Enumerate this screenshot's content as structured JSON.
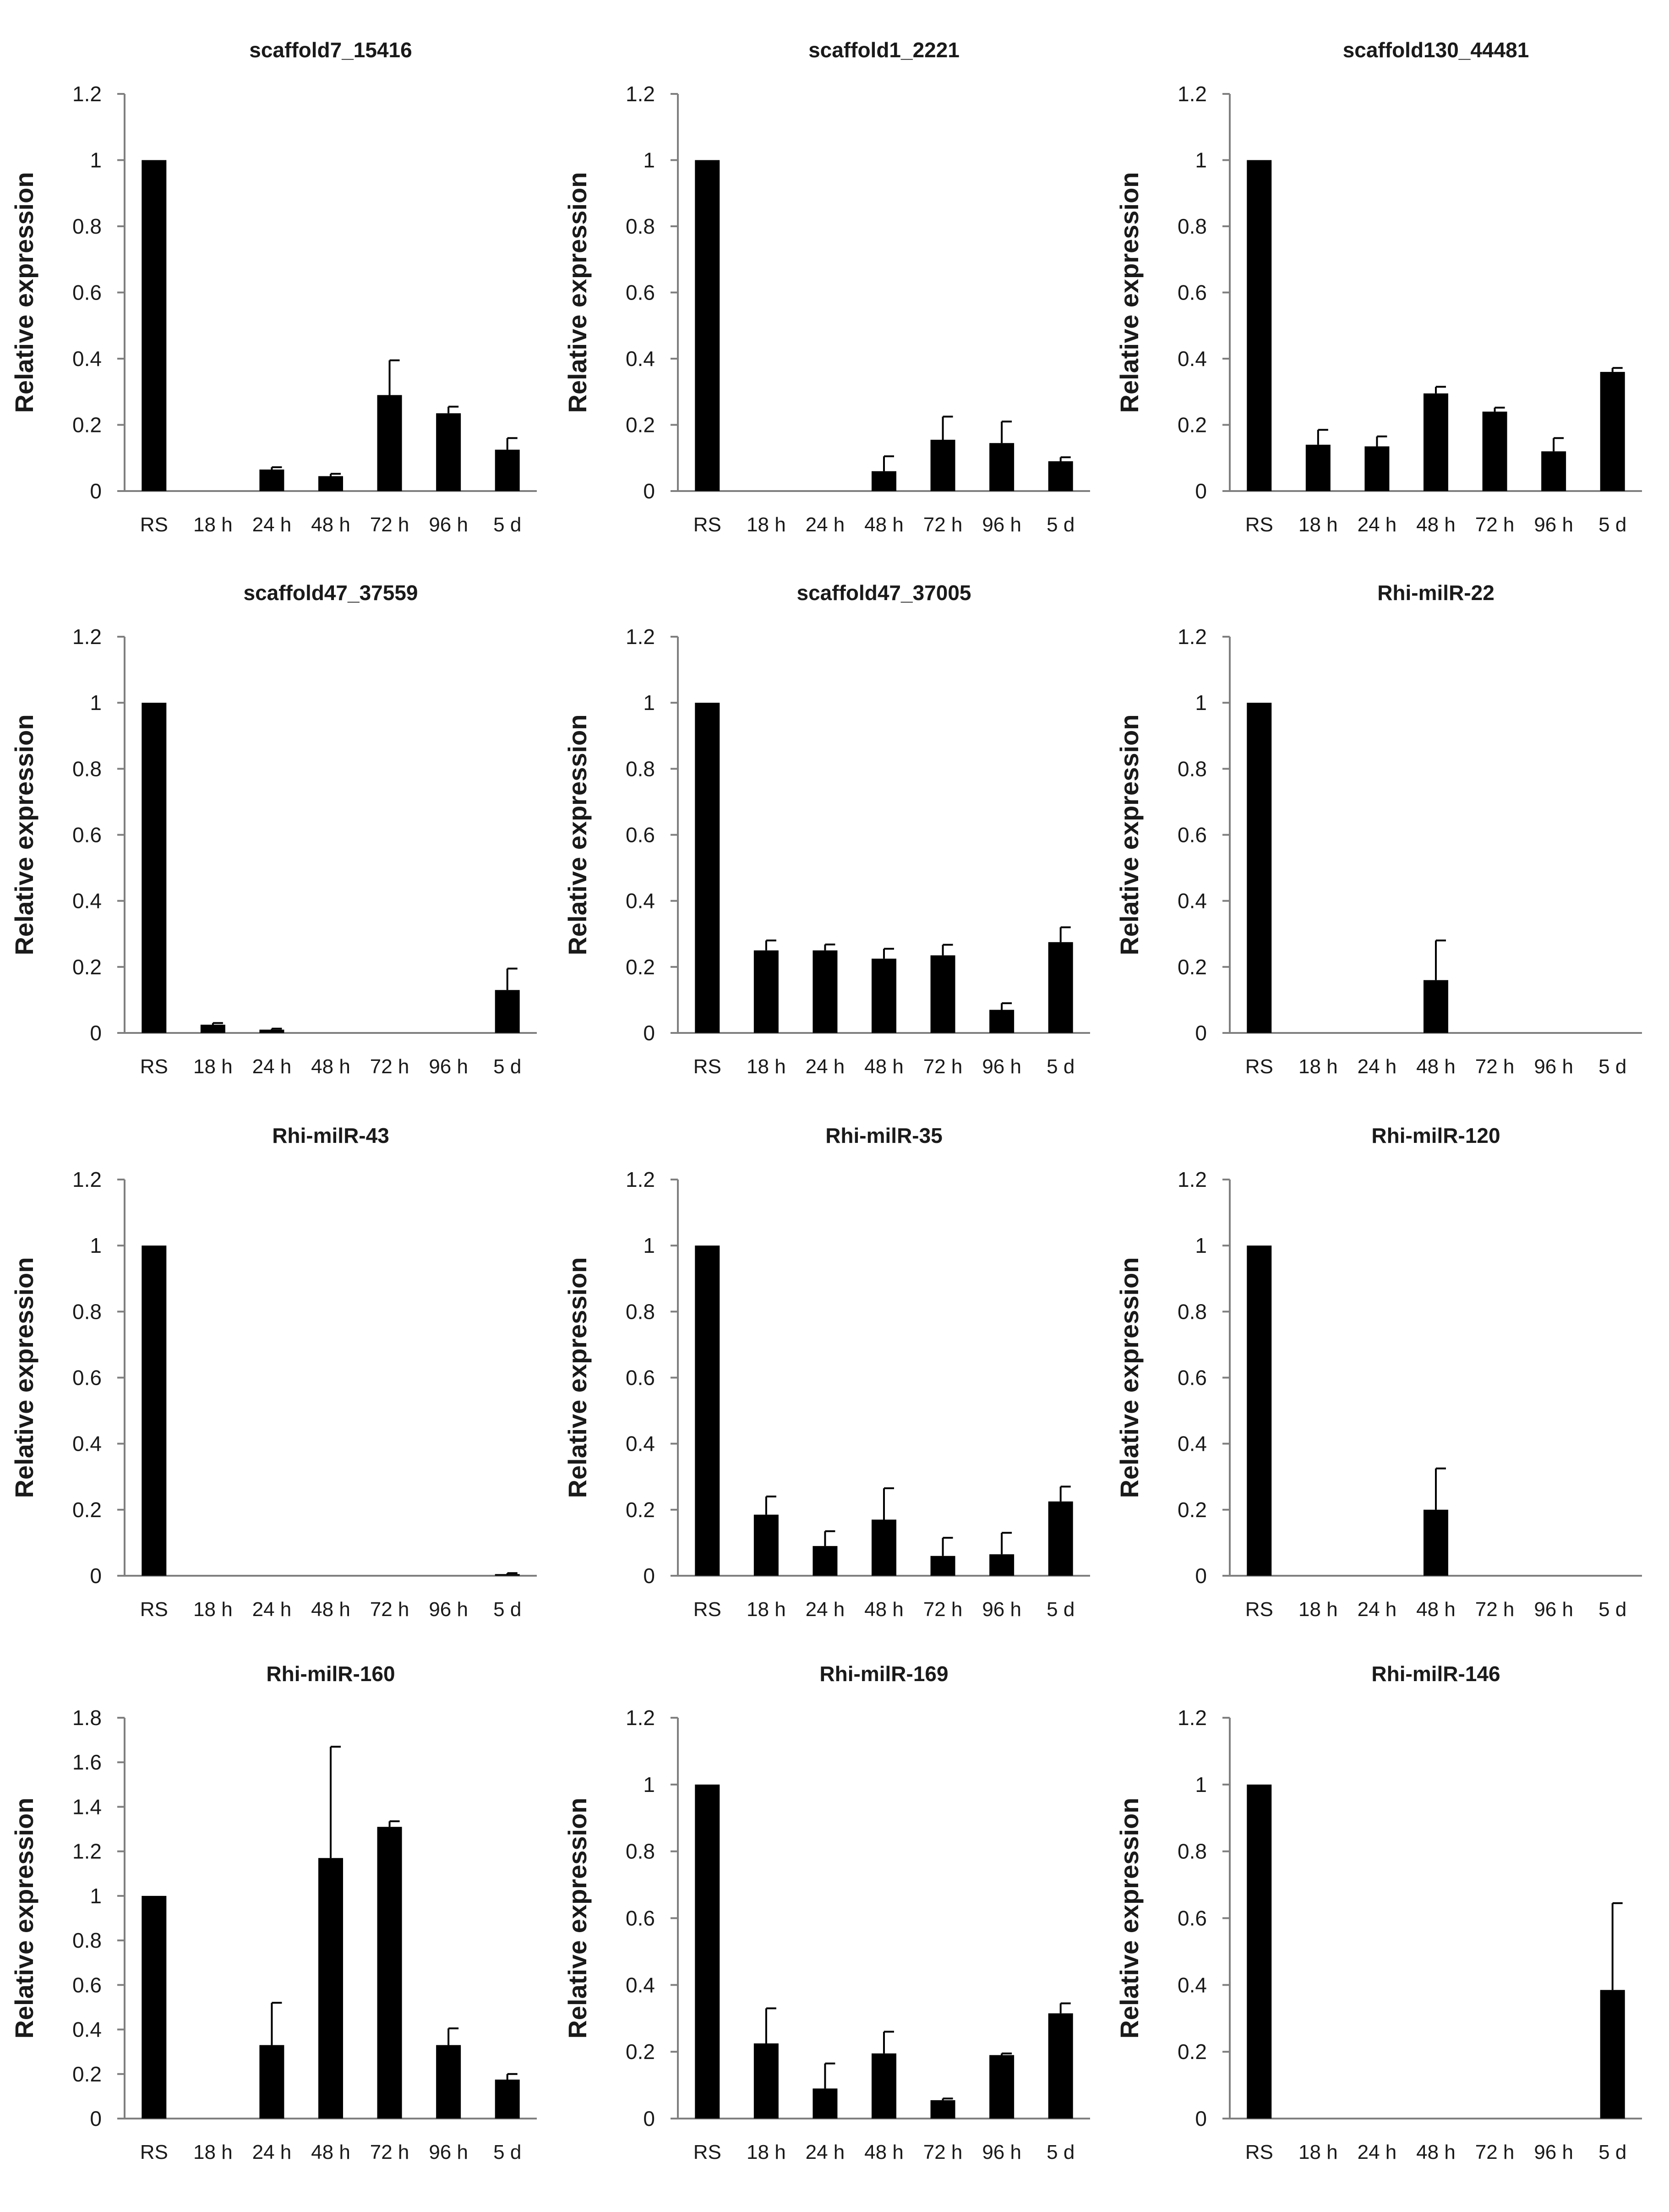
{
  "chart_data": [
    {
      "type": "bar",
      "title": "scaffold7_15416",
      "ylabel": "Relative expression",
      "ylim": [
        0,
        1.2
      ],
      "yticks": [
        "0",
        "0.2",
        "0.4",
        "0.6",
        "0.8",
        "1",
        "1.2"
      ],
      "categories": [
        "RS",
        "18 h",
        "24 h",
        "48 h",
        "72 h",
        "96 h",
        "5 d"
      ],
      "values": [
        1,
        0,
        0.065,
        0.045,
        0.29,
        0.235,
        0.125
      ],
      "errors": [
        0,
        0,
        0.007,
        0.007,
        0.105,
        0.02,
        0.035
      ]
    },
    {
      "type": "bar",
      "title": "scaffold1_2221",
      "ylabel": "Relative expression",
      "ylim": [
        0,
        1.2
      ],
      "yticks": [
        "0",
        "0.2",
        "0.4",
        "0.6",
        "0.8",
        "1",
        "1.2"
      ],
      "categories": [
        "RS",
        "18 h",
        "24 h",
        "48 h",
        "72 h",
        "96 h",
        "5 d"
      ],
      "values": [
        1,
        0,
        0,
        0.06,
        0.155,
        0.145,
        0.09
      ],
      "errors": [
        0,
        0,
        0,
        0.045,
        0.07,
        0.065,
        0.012
      ]
    },
    {
      "type": "bar",
      "title": "scaffold130_44481",
      "ylabel": "Relative expression",
      "ylim": [
        0,
        1.2
      ],
      "yticks": [
        "0",
        "0.2",
        "0.4",
        "0.6",
        "0.8",
        "1",
        "1.2"
      ],
      "categories": [
        "RS",
        "18 h",
        "24 h",
        "48 h",
        "72 h",
        "96 h",
        "5 d"
      ],
      "values": [
        1,
        0.14,
        0.135,
        0.295,
        0.24,
        0.12,
        0.36
      ],
      "errors": [
        0,
        0.045,
        0.03,
        0.02,
        0.012,
        0.04,
        0.012
      ]
    },
    {
      "type": "bar",
      "title": "scaffold47_37559",
      "ylabel": "Relative expression",
      "ylim": [
        0,
        1.2
      ],
      "yticks": [
        "0",
        "0.2",
        "0.4",
        "0.6",
        "0.8",
        "1",
        "1.2"
      ],
      "categories": [
        "RS",
        "18 h",
        "24 h",
        "48 h",
        "72 h",
        "96 h",
        "5 d"
      ],
      "values": [
        1,
        0.025,
        0.01,
        0,
        0,
        0,
        0.13
      ],
      "errors": [
        0,
        0.005,
        0.003,
        0,
        0,
        0,
        0.065
      ]
    },
    {
      "type": "bar",
      "title": "scaffold47_37005",
      "ylabel": "Relative expression",
      "ylim": [
        0,
        1.2
      ],
      "yticks": [
        "0",
        "0.2",
        "0.4",
        "0.6",
        "0.8",
        "1",
        "1.2"
      ],
      "categories": [
        "RS",
        "18 h",
        "24 h",
        "48 h",
        "72 h",
        "96 h",
        "5 d"
      ],
      "values": [
        1,
        0.25,
        0.25,
        0.225,
        0.235,
        0.07,
        0.275
      ],
      "errors": [
        0,
        0.03,
        0.018,
        0.03,
        0.032,
        0.02,
        0.045
      ]
    },
    {
      "type": "bar",
      "title": "Rhi-milR-22",
      "ylabel": "Relative expression",
      "ylim": [
        0,
        1.2
      ],
      "yticks": [
        "0",
        "0.2",
        "0.4",
        "0.6",
        "0.8",
        "1",
        "1.2"
      ],
      "categories": [
        "RS",
        "18 h",
        "24 h",
        "48 h",
        "72 h",
        "96 h",
        "5 d"
      ],
      "values": [
        1,
        0,
        0,
        0.16,
        0,
        0,
        0
      ],
      "errors": [
        0,
        0,
        0,
        0.12,
        0,
        0,
        0
      ]
    },
    {
      "type": "bar",
      "title": "Rhi-milR-43",
      "ylabel": "Relative expression",
      "ylim": [
        0,
        1.2
      ],
      "yticks": [
        "0",
        "0.2",
        "0.4",
        "0.6",
        "0.8",
        "1",
        "1.2"
      ],
      "categories": [
        "RS",
        "18 h",
        "24 h",
        "48 h",
        "72 h",
        "96 h",
        "5 d"
      ],
      "values": [
        1,
        0,
        0,
        0,
        0,
        0,
        0.005
      ],
      "errors": [
        0,
        0,
        0,
        0,
        0,
        0,
        0.003
      ]
    },
    {
      "type": "bar",
      "title": "Rhi-milR-35",
      "ylabel": "Relative expression",
      "ylim": [
        0,
        1.2
      ],
      "yticks": [
        "0",
        "0.2",
        "0.4",
        "0.6",
        "0.8",
        "1",
        "1.2"
      ],
      "categories": [
        "RS",
        "18 h",
        "24 h",
        "48 h",
        "72 h",
        "96 h",
        "5 d"
      ],
      "values": [
        1,
        0.185,
        0.09,
        0.17,
        0.06,
        0.065,
        0.225
      ],
      "errors": [
        0,
        0.055,
        0.045,
        0.095,
        0.055,
        0.065,
        0.045
      ]
    },
    {
      "type": "bar",
      "title": "Rhi-milR-120",
      "ylabel": "Relative expression",
      "ylim": [
        0,
        1.2
      ],
      "yticks": [
        "0",
        "0.2",
        "0.4",
        "0.6",
        "0.8",
        "1",
        "1.2"
      ],
      "categories": [
        "RS",
        "18 h",
        "24 h",
        "48 h",
        "72 h",
        "96 h",
        "5 d"
      ],
      "values": [
        1,
        0,
        0,
        0.2,
        0,
        0,
        0
      ],
      "errors": [
        0,
        0,
        0,
        0.125,
        0,
        0,
        0
      ]
    },
    {
      "type": "bar",
      "title": "Rhi-milR-160",
      "ylabel": "Relative expression",
      "ylim": [
        0,
        1.8
      ],
      "yticks": [
        "0",
        "0.2",
        "0.4",
        "0.6",
        "0.8",
        "1",
        "1.2",
        "1.4",
        "1.6",
        "1.8"
      ],
      "categories": [
        "RS",
        "18 h",
        "24 h",
        "48 h",
        "72 h",
        "96 h",
        "5 d"
      ],
      "values": [
        1,
        0,
        0.33,
        1.17,
        1.31,
        0.33,
        0.175
      ],
      "errors": [
        0,
        0,
        0.19,
        0.5,
        0.025,
        0.075,
        0.025
      ]
    },
    {
      "type": "bar",
      "title": "Rhi-milR-169",
      "ylabel": "Relative expression",
      "ylim": [
        0,
        1.2
      ],
      "yticks": [
        "0",
        "0.2",
        "0.4",
        "0.6",
        "0.8",
        "1",
        "1.2"
      ],
      "categories": [
        "RS",
        "18 h",
        "24 h",
        "48 h",
        "72 h",
        "96 h",
        "5 d"
      ],
      "values": [
        1,
        0.225,
        0.09,
        0.195,
        0.055,
        0.19,
        0.315
      ],
      "errors": [
        0,
        0.105,
        0.075,
        0.065,
        0.005,
        0.005,
        0.03
      ]
    },
    {
      "type": "bar",
      "title": "Rhi-milR-146",
      "ylabel": "Relative expression",
      "ylim": [
        0,
        1.2
      ],
      "yticks": [
        "0",
        "0.2",
        "0.4",
        "0.6",
        "0.8",
        "1",
        "1.2"
      ],
      "categories": [
        "RS",
        "18 h",
        "24 h",
        "48 h",
        "72 h",
        "96 h",
        "5 d"
      ],
      "values": [
        1,
        0,
        0,
        0,
        0,
        0,
        0.385
      ],
      "errors": [
        0,
        0,
        0,
        0,
        0,
        0,
        0.26
      ]
    }
  ],
  "colors": {
    "bar": "#000000",
    "axis": "#7f7f7f",
    "text": "#1a1a1a"
  }
}
